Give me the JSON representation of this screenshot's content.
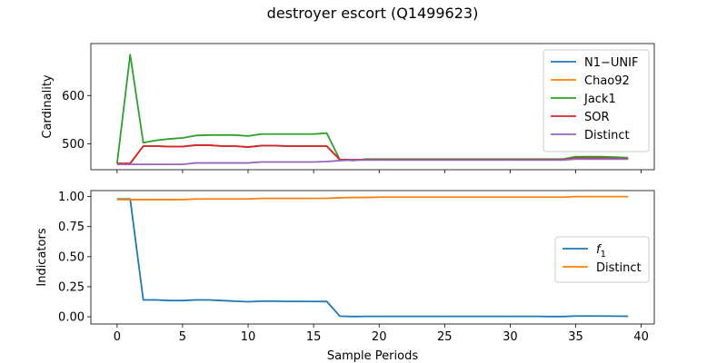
{
  "title": "destroyer escort (Q1499623)",
  "xlabel": "Sample Periods",
  "chart_data": [
    {
      "type": "line",
      "ylabel": "Cardinality",
      "xlim": [
        -2,
        41
      ],
      "ylim": [
        446,
        708
      ],
      "xticks": [
        0,
        5,
        10,
        15,
        20,
        25,
        30,
        35,
        40
      ],
      "yticks": [
        500,
        600
      ],
      "legend_position": "top-right",
      "x": [
        0,
        1,
        2,
        3,
        4,
        5,
        6,
        7,
        8,
        9,
        10,
        11,
        12,
        13,
        14,
        15,
        16,
        17,
        18,
        19,
        20,
        21,
        22,
        23,
        24,
        25,
        26,
        27,
        28,
        29,
        30,
        31,
        32,
        33,
        34,
        35,
        36,
        37,
        38,
        39
      ],
      "series": [
        {
          "name": "N1−UNIF",
          "color": "#1f77b4",
          "values": [
            459,
            459,
            495,
            495,
            494,
            494,
            497,
            497,
            495,
            495,
            493,
            496,
            496,
            495,
            495,
            495,
            495,
            467,
            467,
            467,
            467,
            467,
            467,
            467,
            467,
            467,
            467,
            467,
            467,
            467,
            467,
            467,
            467,
            467,
            467,
            470,
            470,
            470,
            469,
            469
          ]
        },
        {
          "name": "Chao92",
          "color": "#ff7f0e",
          "values": [
            459,
            459,
            495,
            495,
            494,
            494,
            497,
            497,
            495,
            495,
            493,
            496,
            496,
            495,
            495,
            495,
            495,
            467,
            467,
            467,
            467,
            467,
            467,
            467,
            467,
            467,
            467,
            467,
            467,
            467,
            467,
            467,
            467,
            467,
            467,
            470,
            470,
            470,
            469,
            469
          ]
        },
        {
          "name": "Jack1",
          "color": "#2ca02c",
          "values": [
            459,
            685,
            502,
            507,
            510,
            512,
            517,
            518,
            518,
            518,
            516,
            520,
            520,
            520,
            520,
            520,
            522,
            467,
            465,
            468,
            468,
            468,
            468,
            468,
            468,
            468,
            468,
            468,
            468,
            468,
            468,
            468,
            468,
            468,
            468,
            473,
            473,
            473,
            472,
            471
          ]
        },
        {
          "name": "SOR",
          "color": "#d62728",
          "values": [
            459,
            459,
            495,
            495,
            494,
            494,
            497,
            497,
            495,
            495,
            493,
            496,
            496,
            495,
            495,
            495,
            495,
            467,
            467,
            467,
            467,
            467,
            467,
            467,
            467,
            467,
            467,
            467,
            467,
            467,
            467,
            467,
            467,
            467,
            467,
            470,
            470,
            470,
            469,
            469
          ]
        },
        {
          "name": "Distinct",
          "color": "#9467bd",
          "values": [
            457,
            457,
            457,
            457,
            457,
            457,
            460,
            460,
            460,
            460,
            460,
            462,
            462,
            462,
            462,
            462,
            463,
            465,
            466,
            466,
            466,
            466,
            466,
            466,
            466,
            466,
            466,
            466,
            466,
            466,
            466,
            466,
            466,
            466,
            466,
            468,
            468,
            468,
            468,
            468
          ]
        }
      ]
    },
    {
      "type": "line",
      "ylabel": "Indicators",
      "xlim": [
        -2,
        41
      ],
      "ylim": [
        -0.06,
        1.05
      ],
      "xticks": [
        0,
        5,
        10,
        15,
        20,
        25,
        30,
        35,
        40
      ],
      "yticks": [
        0.0,
        0.25,
        0.5,
        0.75,
        1.0
      ],
      "ytick_labels": [
        "0.00",
        "0.25",
        "0.50",
        "0.75",
        "1.00"
      ],
      "legend_position": "center-right",
      "x": [
        0,
        1,
        2,
        3,
        4,
        5,
        6,
        7,
        8,
        9,
        10,
        11,
        12,
        13,
        14,
        15,
        16,
        17,
        18,
        19,
        20,
        21,
        22,
        23,
        24,
        25,
        26,
        27,
        28,
        29,
        30,
        31,
        32,
        33,
        34,
        35,
        36,
        37,
        38,
        39
      ],
      "series": [
        {
          "name": "f",
          "subscript": "1",
          "color": "#1f77b4",
          "values": [
            0.98,
            0.98,
            0.14,
            0.14,
            0.135,
            0.135,
            0.14,
            0.14,
            0.135,
            0.13,
            0.125,
            0.13,
            0.13,
            0.128,
            0.128,
            0.127,
            0.128,
            0.005,
            0.002,
            0.003,
            0.003,
            0.003,
            0.003,
            0.003,
            0.003,
            0.003,
            0.003,
            0.003,
            0.003,
            0.003,
            0.003,
            0.003,
            0.003,
            0.002,
            0.002,
            0.006,
            0.006,
            0.006,
            0.005,
            0.004
          ]
        },
        {
          "name": "Distinct",
          "color": "#ff7f0e",
          "values": [
            0.975,
            0.975,
            0.975,
            0.975,
            0.975,
            0.975,
            0.98,
            0.98,
            0.98,
            0.98,
            0.98,
            0.985,
            0.985,
            0.985,
            0.985,
            0.985,
            0.986,
            0.99,
            0.993,
            0.993,
            0.995,
            0.995,
            0.995,
            0.995,
            0.995,
            0.995,
            0.995,
            0.995,
            0.995,
            0.995,
            0.995,
            0.995,
            0.995,
            0.995,
            0.995,
            1.0,
            1.0,
            1.0,
            1.0,
            1.0
          ]
        }
      ]
    }
  ]
}
